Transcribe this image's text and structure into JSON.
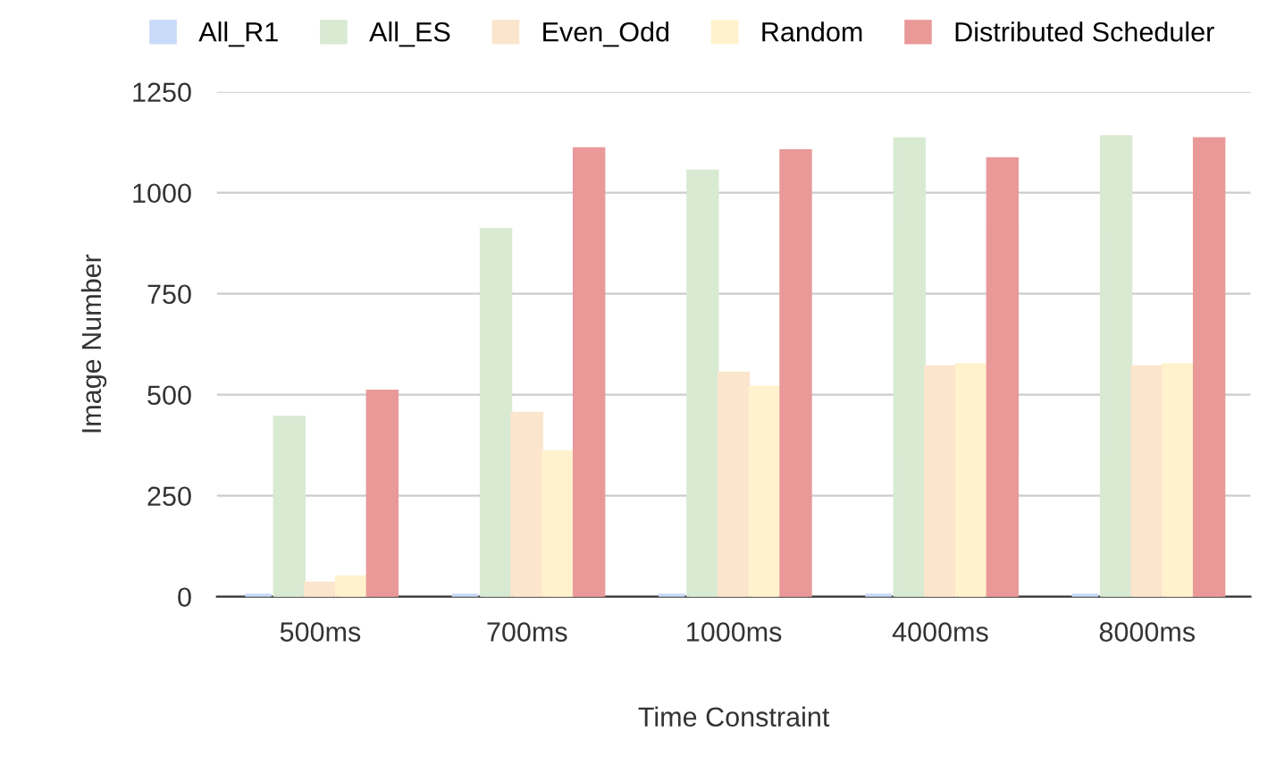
{
  "chart_data": {
    "type": "bar",
    "xlabel": "Time Constraint",
    "ylabel": "Image Number",
    "categories": [
      "500ms",
      "700ms",
      "1000ms",
      "4000ms",
      "8000ms"
    ],
    "series": [
      {
        "name": "All_R1",
        "color": "#c9daf8",
        "values": [
          0,
          0,
          0,
          0,
          0
        ]
      },
      {
        "name": "All_ES",
        "color": "#d9ead3",
        "values": [
          440,
          905,
          1050,
          1130,
          1135
        ]
      },
      {
        "name": "Even_Odd",
        "color": "#fce5cd",
        "values": [
          30,
          450,
          550,
          565,
          565
        ]
      },
      {
        "name": "Random",
        "color": "#fff2cc",
        "values": [
          45,
          355,
          515,
          570,
          570
        ]
      },
      {
        "name": "Distributed Scheduler",
        "color": "#ea9999",
        "values": [
          505,
          1105,
          1100,
          1080,
          1130
        ]
      }
    ],
    "ylim": [
      0,
      1250
    ],
    "yticks": [
      0,
      250,
      500,
      750,
      1000,
      1250
    ],
    "grid": "y",
    "legend": "top"
  }
}
